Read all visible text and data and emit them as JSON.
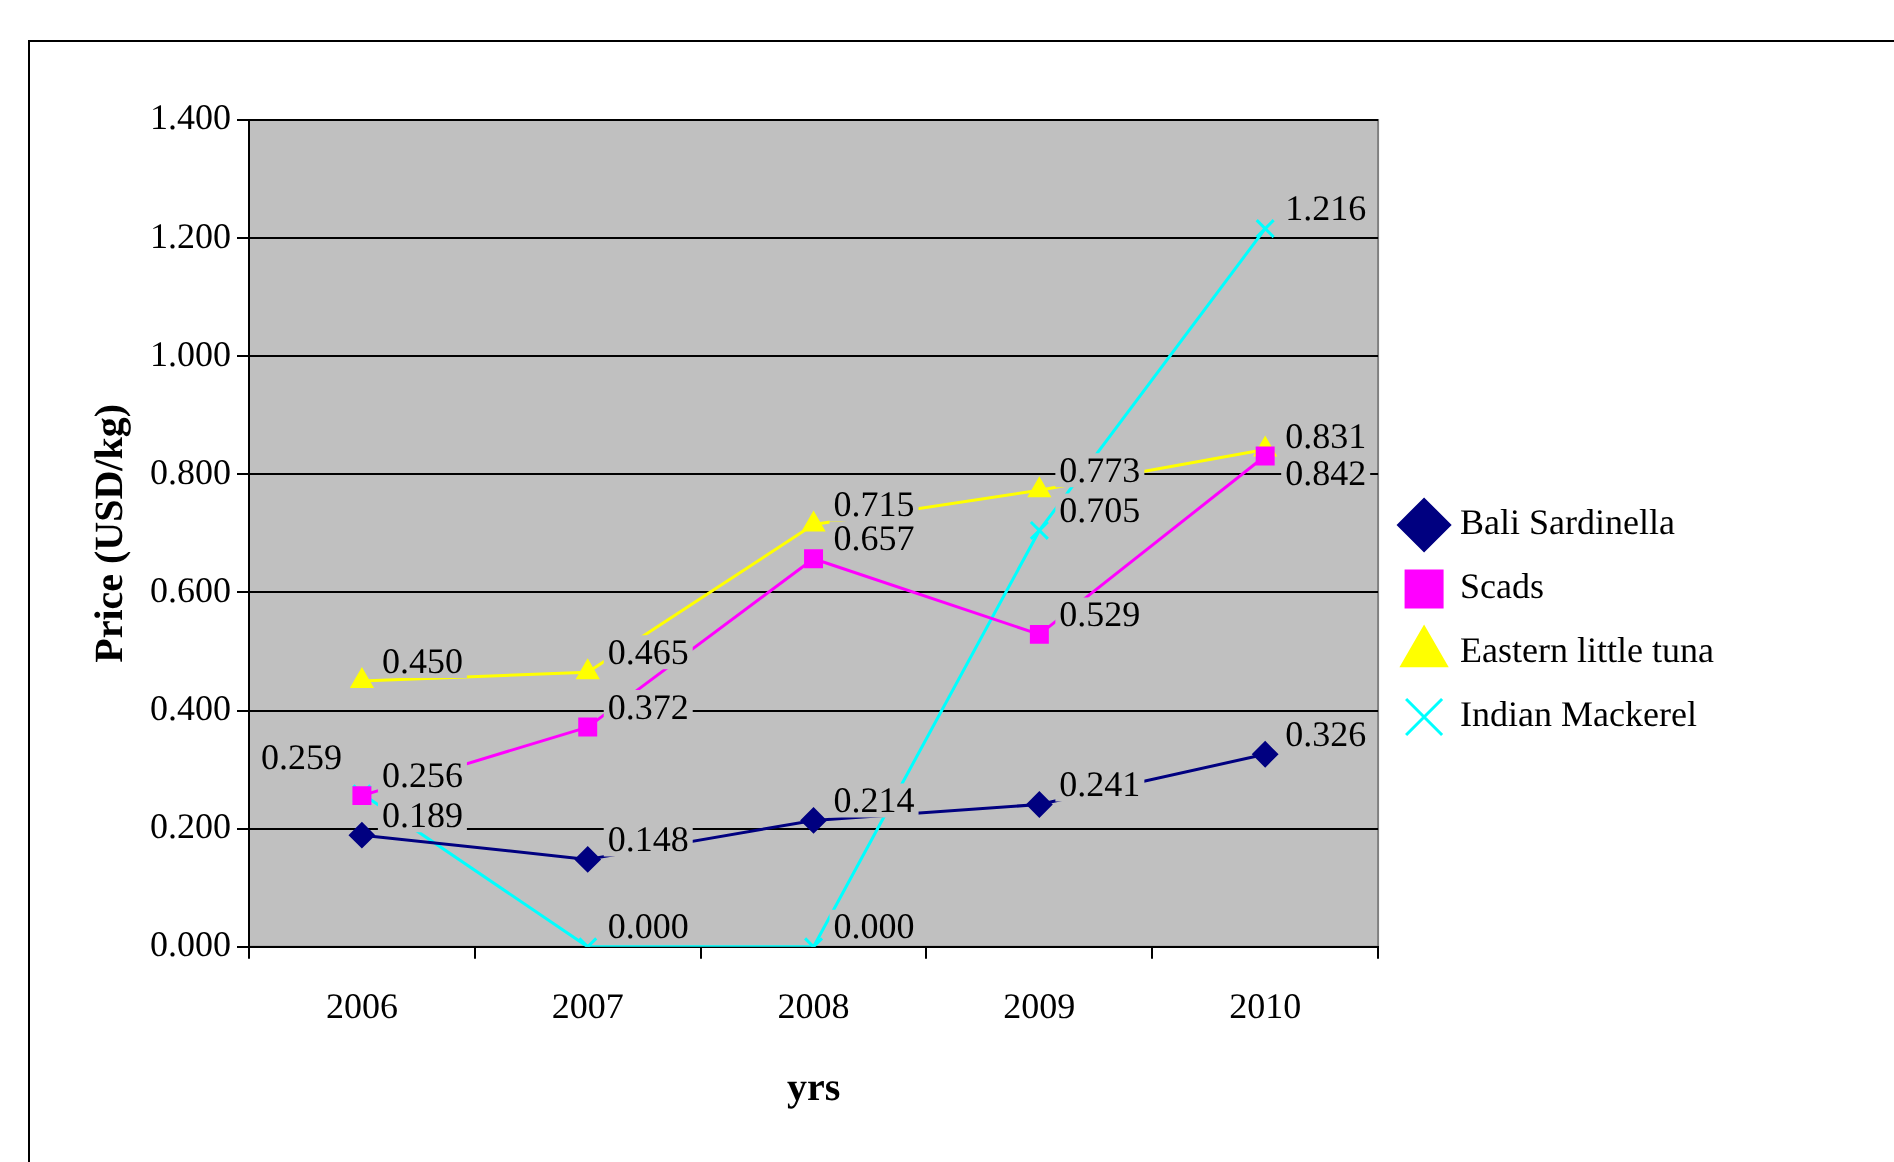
{
  "chart_data": {
    "type": "line",
    "xlabel": "yrs",
    "ylabel": "Price (USD/kg)",
    "categories": [
      "2006",
      "2007",
      "2008",
      "2009",
      "2010"
    ],
    "series": [
      {
        "name": "Bali Sardinella",
        "color": "#000080",
        "marker": "diamond",
        "values": [
          0.189,
          0.148,
          0.214,
          0.241,
          0.326
        ],
        "value_labels": [
          "0.189",
          "0.148",
          "0.214",
          "0.241",
          "0.326"
        ]
      },
      {
        "name": "Scads",
        "color": "#ff00ff",
        "marker": "square",
        "values": [
          0.256,
          0.372,
          0.657,
          0.529,
          0.831
        ],
        "value_labels": [
          "0.256",
          "0.372",
          "0.657",
          "0.529",
          "0.831"
        ]
      },
      {
        "name": "Eastern little tuna",
        "color": "#ffff00",
        "marker": "triangle",
        "values": [
          0.45,
          0.465,
          0.715,
          0.773,
          0.842
        ],
        "value_labels": [
          "0.450",
          "0.465",
          "0.715",
          "0.773",
          "0.842"
        ]
      },
      {
        "name": "Indian Mackerel",
        "color": "#00ffff",
        "marker": "cross",
        "values": [
          0.259,
          0.0,
          0.0,
          0.705,
          1.216
        ],
        "value_labels": [
          "0.259",
          "0.000",
          "0.000",
          "0.705",
          "1.216"
        ]
      }
    ],
    "ylim": [
      0,
      1.4
    ],
    "yticks": [
      {
        "value": 0,
        "label": "0.000"
      },
      {
        "value": 0.2,
        "label": "0.200"
      },
      {
        "value": 0.4,
        "label": "0.400"
      },
      {
        "value": 0.6,
        "label": "0.600"
      },
      {
        "value": 0.8,
        "label": "0.800"
      },
      {
        "value": 1.0,
        "label": "1.000"
      },
      {
        "value": 1.2,
        "label": "1.200"
      },
      {
        "value": 1.4,
        "label": "1.400"
      }
    ],
    "grid": "y",
    "legend": "right"
  }
}
